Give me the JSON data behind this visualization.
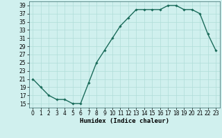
{
  "title": "",
  "xlabel": "Humidex (Indice chaleur)",
  "ylabel": "",
  "x": [
    0,
    1,
    2,
    3,
    4,
    5,
    6,
    7,
    8,
    9,
    10,
    11,
    12,
    13,
    14,
    15,
    16,
    17,
    18,
    19,
    20,
    21,
    22,
    23
  ],
  "y": [
    21,
    19,
    17,
    16,
    16,
    15,
    15,
    20,
    25,
    28,
    31,
    34,
    36,
    38,
    38,
    38,
    38,
    39,
    39,
    38,
    38,
    37,
    32,
    28
  ],
  "line_color": "#1a6b5a",
  "marker": "D",
  "marker_size": 1.8,
  "background_color": "#d0f0ee",
  "grid_color": "#b0ddd8",
  "ylim": [
    14,
    40
  ],
  "yticks": [
    15,
    17,
    19,
    21,
    23,
    25,
    27,
    29,
    31,
    33,
    35,
    37,
    39
  ],
  "xlim": [
    -0.5,
    23.5
  ],
  "xticks": [
    0,
    1,
    2,
    3,
    4,
    5,
    6,
    7,
    8,
    9,
    10,
    11,
    12,
    13,
    14,
    15,
    16,
    17,
    18,
    19,
    20,
    21,
    22,
    23
  ],
  "tick_fontsize": 5.5,
  "xlabel_fontsize": 6.5,
  "line_width": 1.0
}
